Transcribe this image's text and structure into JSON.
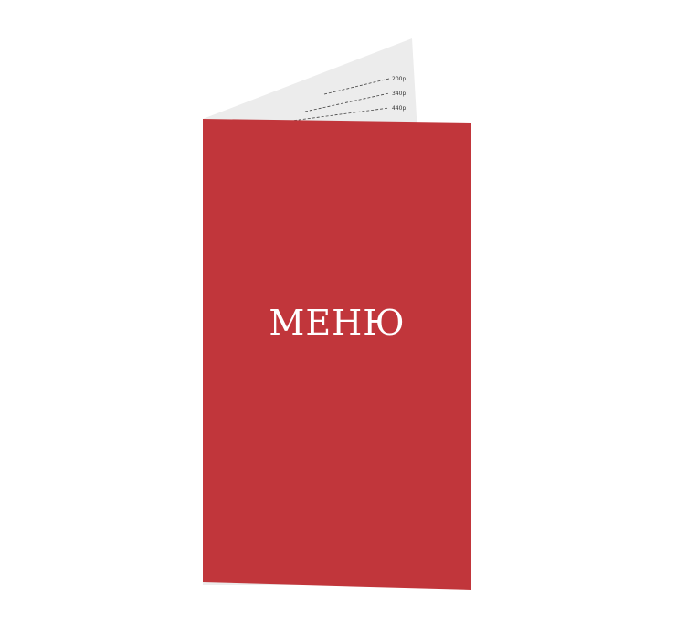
{
  "menu": {
    "cover_title": "МЕНЮ",
    "cover_color": "#c1363b",
    "inner_page_color": "#ececec",
    "prices": [
      "200p",
      "340p",
      "440p"
    ]
  }
}
